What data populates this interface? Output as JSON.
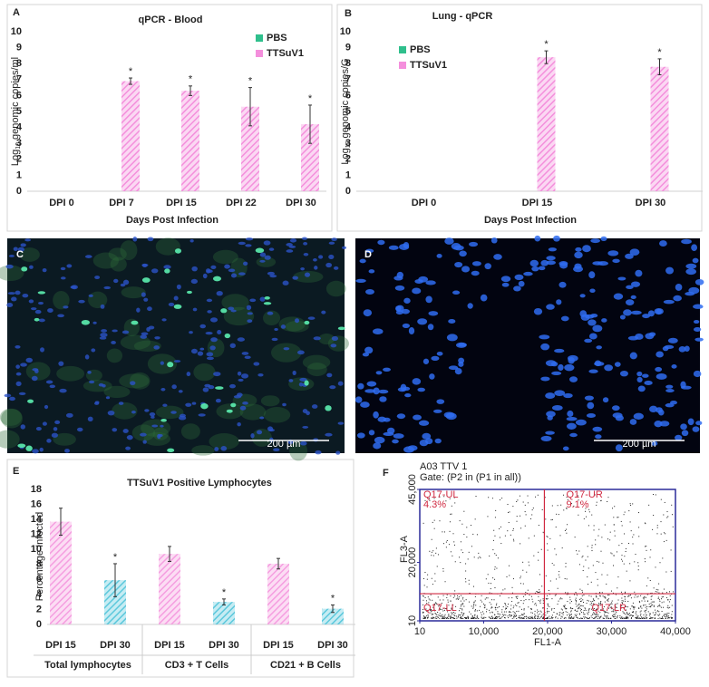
{
  "chart_data": [
    {
      "type": "bar",
      "panel_label": "A",
      "title": "qPCR - Blood",
      "ylabel": {
        "base": "Log",
        "sub": "10",
        "rest": "genomic copies/ml"
      },
      "xlabel": "Days Post Infection",
      "categories": [
        "DPI 0",
        "DPI 7",
        "DPI 15",
        "DPI 22",
        "DPI 30"
      ],
      "series": [
        {
          "name": "PBS",
          "color": "#2fbf8c",
          "values": [
            0,
            0,
            0,
            0,
            0
          ],
          "errors": [
            null,
            null,
            null,
            null,
            null
          ],
          "annotations": [
            null,
            null,
            null,
            null,
            null
          ]
        },
        {
          "name": "TTSuV1",
          "color": "#f48fdc",
          "values": [
            0,
            6.9,
            6.3,
            5.3,
            4.2
          ],
          "errors": [
            null,
            0.2,
            0.3,
            1.2,
            1.2
          ],
          "annotations": [
            null,
            "*",
            "*",
            "*",
            "*"
          ]
        }
      ],
      "ylim": [
        0,
        10
      ],
      "yticks": [
        0,
        1,
        2,
        3,
        4,
        5,
        6,
        7,
        8,
        9,
        10
      ],
      "grid": false,
      "hatch": true,
      "legend": "upper right"
    },
    {
      "type": "bar",
      "panel_label": "B",
      "title": "Lung - qPCR",
      "ylabel": {
        "base": "Log",
        "sub": "10",
        "rest": "genomic copies/G"
      },
      "xlabel": "Days Post Infection",
      "categories": [
        "DPI 0",
        "DPI 15",
        "DPI 30"
      ],
      "series": [
        {
          "name": "PBS",
          "color": "#2fbf8c",
          "values": [
            0,
            0,
            0
          ],
          "errors": [
            null,
            null,
            null
          ],
          "annotations": [
            null,
            null,
            null
          ]
        },
        {
          "name": "TTSuV1",
          "color": "#f48fdc",
          "values": [
            0,
            8.4,
            7.8
          ],
          "errors": [
            null,
            0.4,
            0.5
          ],
          "annotations": [
            null,
            "*",
            "*"
          ]
        }
      ],
      "ylim": [
        0,
        10
      ],
      "yticks": [
        0,
        1,
        2,
        3,
        4,
        5,
        6,
        7,
        8,
        9,
        10
      ],
      "grid": false,
      "hatch": true,
      "legend": "upper left"
    },
    {
      "type": "bar",
      "panel_label": "E",
      "title": "TTSuV1 Positive Lymphocytes",
      "ylabel": "Percentage Infected",
      "categories": [
        "DPI 15",
        "DPI 30",
        "DPI 15",
        "DPI 30",
        "DPI 15",
        "DPI 30"
      ],
      "groups": [
        "Total lymphocytes",
        "CD3 + T Cells",
        "CD21 + B Cells"
      ],
      "values": [
        13.7,
        5.9,
        9.4,
        3.0,
        8.1,
        2.1
      ],
      "errors": [
        1.8,
        2.2,
        1.0,
        0.4,
        0.7,
        0.5
      ],
      "annotations": [
        null,
        "*",
        null,
        "*",
        null,
        "*"
      ],
      "colors": [
        "#f59ee0",
        "#5cc8dc",
        "#f59ee0",
        "#5cc8dc",
        "#f59ee0",
        "#5cc8dc"
      ],
      "ylim": [
        0,
        18
      ],
      "yticks": [
        0,
        2,
        4,
        6,
        8,
        10,
        12,
        14,
        16,
        18
      ],
      "grid": false,
      "hatch": true
    },
    {
      "type": "scatter",
      "panel_label": "F",
      "title": "A03 TTV 1",
      "subtitle": "Gate: (P2 in (P1 in all))",
      "xlabel": "FL1-A",
      "ylabel": "FL3-A",
      "xlim": [
        10,
        40000
      ],
      "xticks": [
        10,
        {
          "value": 10000,
          "label": "10,000"
        },
        {
          "value": 20000,
          "label": "20,000"
        },
        {
          "value": 30000,
          "label": "30,000"
        },
        {
          "value": 40000,
          "label": "40,000"
        }
      ],
      "ylim": [
        10,
        45000
      ],
      "yticks": [
        10,
        {
          "value": 20000,
          "label": "20,000"
        },
        {
          "value": 45000,
          "label": "45,000"
        }
      ],
      "gates": {
        "x": 19500,
        "y": 9300
      },
      "quadrants": {
        "names": [
          "Q17-UL",
          "Q17-UR",
          "Q17-LL",
          "Q17-LR"
        ],
        "values": [
          4.3,
          9.1,
          null,
          null
        ],
        "value_labels": [
          "4.3%",
          "9.1%",
          null,
          null
        ]
      },
      "color": "#222222",
      "frame_color": "#2b2b9a",
      "gate_color": "#d02840"
    }
  ],
  "images": [
    {
      "panel_label": "C",
      "scale_bar": "200 µm"
    },
    {
      "panel_label": "D",
      "scale_bar": "200 µm"
    }
  ]
}
